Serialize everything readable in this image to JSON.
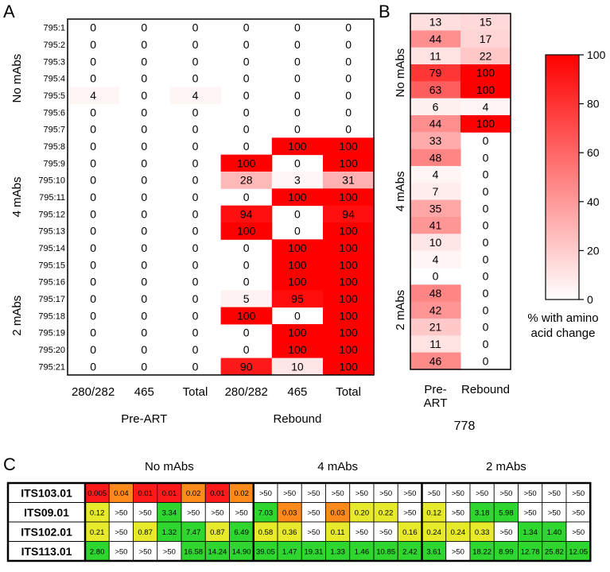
{
  "chart_data": [
    {
      "panel": "A",
      "type": "heatmap",
      "row_labels": [
        "795:1",
        "795:2",
        "795:3",
        "795:4",
        "795:5",
        "795:6",
        "795:7",
        "795:8",
        "795:9",
        "795:10",
        "795:11",
        "795:12",
        "795:13",
        "795:14",
        "795:15",
        "795:16",
        "795:17",
        "795:18",
        "795:19",
        "795:20",
        "795:21"
      ],
      "group_labels": [
        {
          "label": "No mAbs",
          "rows": [
            0,
            6
          ]
        },
        {
          "label": "4 mAbs",
          "rows": [
            7,
            13
          ]
        },
        {
          "label": "2 mAbs",
          "rows": [
            14,
            20
          ]
        }
      ],
      "col_labels": [
        "280/282",
        "465",
        "Total",
        "280/282",
        "465",
        "Total"
      ],
      "col_groups": [
        {
          "label": "Pre-ART",
          "cols": [
            0,
            2
          ]
        },
        {
          "label": "Rebound",
          "cols": [
            3,
            5
          ]
        }
      ],
      "values": [
        [
          0,
          0,
          0,
          0,
          0,
          0
        ],
        [
          0,
          0,
          0,
          0,
          0,
          0
        ],
        [
          0,
          0,
          0,
          0,
          0,
          0
        ],
        [
          0,
          0,
          0,
          0,
          0,
          0
        ],
        [
          4,
          0,
          4,
          0,
          0,
          0
        ],
        [
          0,
          0,
          0,
          0,
          0,
          0
        ],
        [
          0,
          0,
          0,
          0,
          0,
          0
        ],
        [
          0,
          0,
          0,
          0,
          100,
          100
        ],
        [
          0,
          0,
          0,
          100,
          0,
          100
        ],
        [
          0,
          0,
          0,
          28,
          3,
          31
        ],
        [
          0,
          0,
          0,
          0,
          100,
          100
        ],
        [
          0,
          0,
          0,
          94,
          0,
          94
        ],
        [
          0,
          0,
          0,
          100,
          0,
          100
        ],
        [
          0,
          0,
          0,
          0,
          100,
          100
        ],
        [
          0,
          0,
          0,
          0,
          100,
          100
        ],
        [
          0,
          0,
          0,
          0,
          100,
          100
        ],
        [
          0,
          0,
          0,
          5,
          95,
          100
        ],
        [
          0,
          0,
          0,
          100,
          0,
          100
        ],
        [
          0,
          0,
          0,
          0,
          100,
          100
        ],
        [
          0,
          0,
          0,
          0,
          100,
          100
        ],
        [
          0,
          0,
          0,
          90,
          10,
          100
        ]
      ]
    },
    {
      "panel": "B",
      "type": "heatmap",
      "title": "778",
      "col_labels": [
        "Pre-\nART",
        "Rebound"
      ],
      "group_labels": [
        {
          "label": "No mAbs",
          "rows": [
            0,
            6
          ]
        },
        {
          "label": "4 mAbs",
          "rows": [
            7,
            13
          ]
        },
        {
          "label": "2 mAbs",
          "rows": [
            14,
            20
          ]
        }
      ],
      "values": [
        [
          13,
          15
        ],
        [
          44,
          17
        ],
        [
          11,
          22
        ],
        [
          79,
          100
        ],
        [
          63,
          100
        ],
        [
          6,
          4
        ],
        [
          44,
          100
        ],
        [
          33,
          0
        ],
        [
          48,
          0
        ],
        [
          4,
          0
        ],
        [
          7,
          0
        ],
        [
          35,
          0
        ],
        [
          41,
          0
        ],
        [
          10,
          0
        ],
        [
          4,
          0
        ],
        [
          0,
          0
        ],
        [
          48,
          0
        ],
        [
          42,
          0
        ],
        [
          21,
          0
        ],
        [
          11,
          0
        ],
        [
          46,
          0
        ]
      ],
      "colorbar": {
        "min": 0,
        "max": 100,
        "ticks": [
          "0",
          "20",
          "40",
          "60",
          "80",
          "100"
        ],
        "label_lines": [
          "% with amino",
          "acid change"
        ]
      }
    },
    {
      "panel": "C",
      "type": "table",
      "group_labels": [
        "No mAbs",
        "4 mAbs",
        "2 mAbs"
      ],
      "rows": [
        {
          "label": "ITS103.01",
          "cells": [
            [
              "0.005",
              "red"
            ],
            [
              "0.04",
              "orange"
            ],
            [
              "0.01",
              "red"
            ],
            [
              "0.01",
              "red"
            ],
            [
              "0.02",
              "orange"
            ],
            [
              "0.01",
              "red"
            ],
            [
              "0.02",
              "orange"
            ],
            [
              ">50",
              "white"
            ],
            [
              ">50",
              "white"
            ],
            [
              ">50",
              "white"
            ],
            [
              ">50",
              "white"
            ],
            [
              ">50",
              "white"
            ],
            [
              ">50",
              "white"
            ],
            [
              ">50",
              "white"
            ],
            [
              ">50",
              "white"
            ],
            [
              ">50",
              "white"
            ],
            [
              ">50",
              "white"
            ],
            [
              ">50",
              "white"
            ],
            [
              ">50",
              "white"
            ],
            [
              ">50",
              "white"
            ],
            [
              ">50",
              "white"
            ]
          ]
        },
        {
          "label": "ITS09.01",
          "cells": [
            [
              "0.12",
              "yellow"
            ],
            [
              ">50",
              "white"
            ],
            [
              ">50",
              "white"
            ],
            [
              "3.34",
              "green"
            ],
            [
              ">50",
              "white"
            ],
            [
              ">50",
              "white"
            ],
            [
              ">50",
              "white"
            ],
            [
              "7.03",
              "green"
            ],
            [
              "0.03",
              "orange"
            ],
            [
              ">50",
              "white"
            ],
            [
              "0.03",
              "orange"
            ],
            [
              "0.20",
              "yellow"
            ],
            [
              "0.22",
              "yellow"
            ],
            [
              ">50",
              "white"
            ],
            [
              "0.12",
              "yellow"
            ],
            [
              ">50",
              "white"
            ],
            [
              "3.18",
              "green"
            ],
            [
              "5.98",
              "green"
            ],
            [
              ">50",
              "white"
            ],
            [
              ">50",
              "white"
            ],
            [
              ">50",
              "white"
            ]
          ]
        },
        {
          "label": "ITS102.01",
          "cells": [
            [
              "0.21",
              "yellow"
            ],
            [
              ">50",
              "white"
            ],
            [
              "0.87",
              "yellow"
            ],
            [
              "1.32",
              "green"
            ],
            [
              "7.47",
              "green"
            ],
            [
              "0.87",
              "yellow"
            ],
            [
              "6.49",
              "green"
            ],
            [
              "0.58",
              "yellow"
            ],
            [
              "0.36",
              "yellow"
            ],
            [
              ">50",
              "white"
            ],
            [
              "0.11",
              "yellow"
            ],
            [
              ">50",
              "white"
            ],
            [
              ">50",
              "white"
            ],
            [
              "0.16",
              "yellow"
            ],
            [
              "0.24",
              "yellow"
            ],
            [
              "0.24",
              "yellow"
            ],
            [
              "0.33",
              "yellow"
            ],
            [
              ">50",
              "white"
            ],
            [
              "1.34",
              "green"
            ],
            [
              "1.40",
              "green"
            ],
            [
              ">50",
              "white"
            ]
          ]
        },
        {
          "label": "ITS113.01",
          "cells": [
            [
              "2.80",
              "green"
            ],
            [
              ">50",
              "white"
            ],
            [
              ">50",
              "white"
            ],
            [
              ">50",
              "white"
            ],
            [
              "16.58",
              "green"
            ],
            [
              "14.24",
              "green"
            ],
            [
              "14.90",
              "green"
            ],
            [
              "39.05",
              "green"
            ],
            [
              "1.47",
              "green"
            ],
            [
              "19.31",
              "green"
            ],
            [
              "1.33",
              "green"
            ],
            [
              "1.46",
              "green"
            ],
            [
              "10.85",
              "green"
            ],
            [
              "2.42",
              "green"
            ],
            [
              "3.61",
              "green"
            ],
            [
              ">50",
              "white"
            ],
            [
              "18.22",
              "green"
            ],
            [
              "8.99",
              "green"
            ],
            [
              "12.78",
              "green"
            ],
            [
              "25.82",
              "green"
            ],
            [
              "12.05",
              "green"
            ]
          ]
        }
      ]
    }
  ],
  "panel_labels": {
    "a": "A",
    "b": "B",
    "c": "C"
  },
  "colors": {
    "heat_low": "#ffffff",
    "heat_high": "#ff0000",
    "red": "#ff1a1a",
    "orange": "#ff8a1c",
    "yellow": "#e6ea2a",
    "green": "#2fd62f",
    "white": "#ffffff"
  }
}
